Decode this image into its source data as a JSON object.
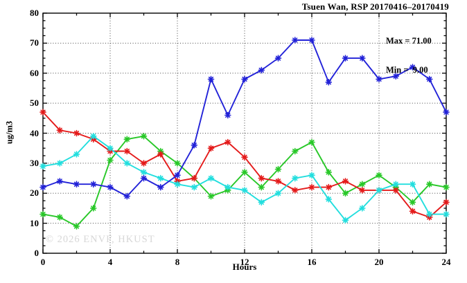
{
  "title": "Tsuen Wan, RSP 20170416–20170419",
  "legend": {
    "max_label": "Max = 71.00",
    "min_label": "Min =  9.00"
  },
  "watermark": "© 2026 ENVF, HKUST",
  "colors": {
    "blue": "#2222d8",
    "red": "#e41a1a",
    "green": "#28c828",
    "cyan": "#22dede",
    "grid": "#444444",
    "axis": "#000000",
    "watermark": "#d7d7d7"
  },
  "chart_data": {
    "type": "line",
    "title": "Tsuen Wan, RSP 20170416–20170419",
    "xlabel": "Hours",
    "ylabel": "ug/m3",
    "xlim": [
      0,
      24
    ],
    "ylim": [
      0,
      80
    ],
    "x_major_ticks": [
      0,
      4,
      8,
      12,
      16,
      20,
      24
    ],
    "x_minor_step": 2,
    "y_major_ticks": [
      0,
      10,
      20,
      30,
      40,
      50,
      60,
      70,
      80
    ],
    "y_minor_step": 2.5,
    "grid": "dotted lines at major ticks",
    "legend_position": "top-right inside plot",
    "marker": "asterisk",
    "x": [
      0,
      1,
      2,
      3,
      4,
      5,
      6,
      7,
      8,
      9,
      10,
      11,
      12,
      13,
      14,
      15,
      16,
      17,
      18,
      19,
      20,
      21,
      22,
      23,
      24
    ],
    "series": [
      {
        "name": "series-blue",
        "color": "#2222d8",
        "values": [
          22,
          24,
          23,
          23,
          22,
          19,
          25,
          22,
          26,
          36,
          58,
          46,
          58,
          61,
          65,
          71,
          71,
          57,
          65,
          65,
          58,
          59,
          62,
          58,
          47
        ]
      },
      {
        "name": "series-red",
        "color": "#e41a1a",
        "values": [
          47,
          41,
          40,
          38,
          34,
          34,
          30,
          33,
          24,
          25,
          35,
          37,
          32,
          25,
          24,
          21,
          22,
          22,
          24,
          21,
          21,
          21,
          14,
          12,
          17
        ]
      },
      {
        "name": "series-green",
        "color": "#28c828",
        "values": [
          13,
          12,
          9,
          15,
          31,
          38,
          39,
          34,
          30,
          25,
          19,
          21,
          27,
          22,
          28,
          34,
          37,
          27,
          20,
          23,
          26,
          22,
          17,
          23,
          22
        ]
      },
      {
        "name": "series-cyan",
        "color": "#22dede",
        "values": [
          29,
          30,
          33,
          39,
          35,
          30,
          27,
          25,
          23,
          22,
          25,
          22,
          21,
          17,
          20,
          25,
          26,
          18,
          11,
          15,
          21,
          23,
          23,
          13,
          13
        ]
      }
    ],
    "annotations": {
      "max": "71.00",
      "min": "9.00"
    }
  }
}
